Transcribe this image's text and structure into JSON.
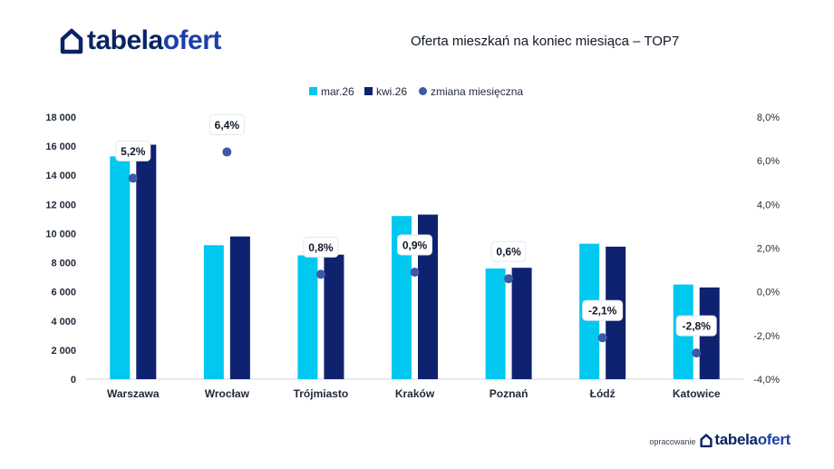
{
  "brand": {
    "word1": "tabela",
    "word2": "ofert",
    "credit_prefix": "opracowanie"
  },
  "colors": {
    "series1": "#00c8ef",
    "series2": "#0f2270",
    "change": "#3d5aa8",
    "brand_dark": "#0a2463",
    "brand_accent": "#1e3fa8"
  },
  "chart_data": {
    "type": "bar",
    "title": "Oferta mieszkań na koniec miesiąca – TOP7",
    "categories": [
      "Warszawa",
      "Wrocław",
      "Trójmiasto",
      "Kraków",
      "Poznań",
      "Łódź",
      "Katowice"
    ],
    "series": [
      {
        "name": "mar.26",
        "axis": "left",
        "values": [
          15300,
          9200,
          8500,
          11200,
          7600,
          9300,
          6500
        ]
      },
      {
        "name": "kwi.26",
        "axis": "left",
        "values": [
          16100,
          9800,
          8550,
          11300,
          7650,
          9100,
          6300
        ]
      },
      {
        "name": "zmiana miesięczna",
        "type": "scatter",
        "axis": "right",
        "values": [
          5.2,
          6.4,
          0.8,
          0.9,
          0.6,
          -2.1,
          -2.8
        ],
        "labels": [
          "5,2%",
          "6,4%",
          "0,8%",
          "0,9%",
          "0,6%",
          "-2,1%",
          "-2,8%"
        ]
      }
    ],
    "ylim": [
      0,
      18000
    ],
    "y_ticks": [
      "0",
      "2 000",
      "4 000",
      "6 000",
      "8 000",
      "10 000",
      "12 000",
      "14 000",
      "16 000",
      "18 000"
    ],
    "y2lim": [
      -4,
      8
    ],
    "y2_ticks": [
      "-4,0%",
      "-2,0%",
      "0,0%",
      "2,0%",
      "4,0%",
      "6,0%",
      "8,0%"
    ],
    "legend_position": "top-center",
    "grid": false
  }
}
